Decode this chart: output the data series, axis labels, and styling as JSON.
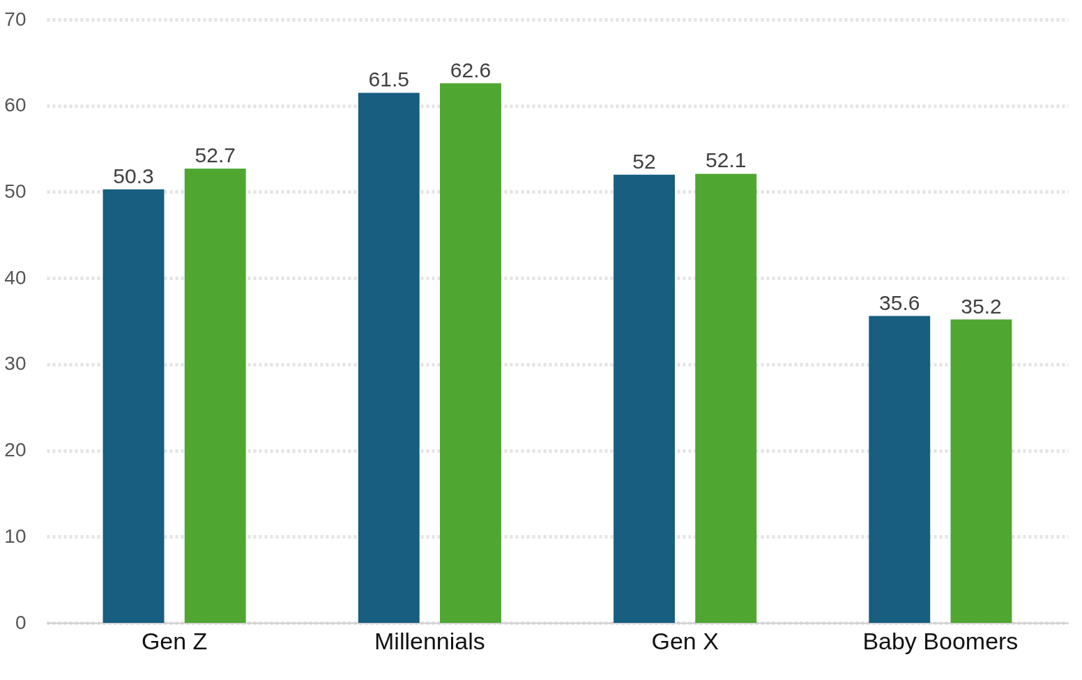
{
  "chart_data": {
    "type": "bar",
    "categories": [
      "Gen Z",
      "Millennials",
      "Gen X",
      "Baby Boomers"
    ],
    "series": [
      {
        "color": "#175e80",
        "values": [
          50.3,
          61.5,
          52,
          35.6
        ]
      },
      {
        "color": "#4fa630",
        "values": [
          52.7,
          62.6,
          52.1,
          35.2
        ]
      }
    ],
    "ylim": [
      0,
      70
    ],
    "yticks": [
      0,
      10,
      20,
      30,
      40,
      50,
      60,
      70
    ],
    "grid": "y",
    "data_labels": true,
    "legend": false
  }
}
